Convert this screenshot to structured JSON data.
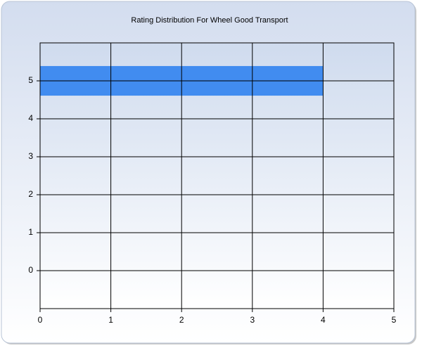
{
  "chart_data": {
    "type": "hbar",
    "title": "Rating Distribution For Wheel Good Transport",
    "y": [
      5
    ],
    "values": [
      4
    ],
    "color": "#418cf0",
    "xlim": [
      0,
      5
    ],
    "xticks": [
      0,
      1,
      2,
      3,
      4,
      5
    ],
    "ylim": [
      -1,
      6
    ],
    "yticks": [
      0,
      1,
      2,
      3,
      4,
      5
    ],
    "grid": true
  }
}
